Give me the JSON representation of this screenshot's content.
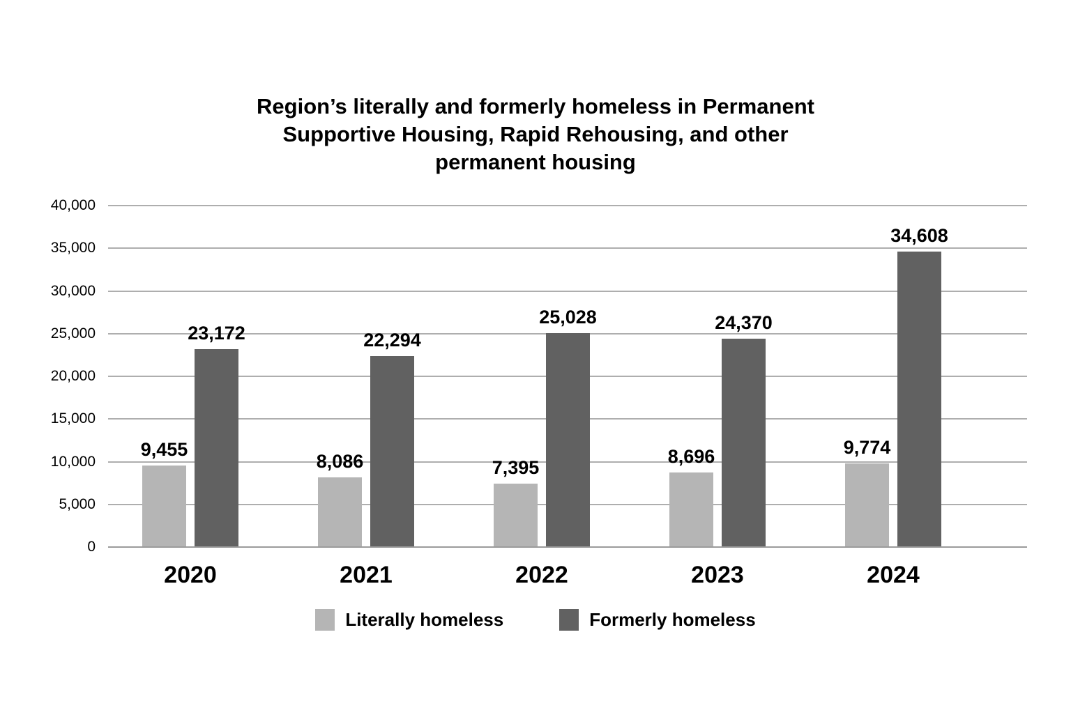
{
  "title": {
    "line1": "Region’s literally and formerly homeless in Permanent",
    "line2": "Supportive Housing, Rapid Rehousing, and other",
    "line3": "permanent housing"
  },
  "chart_data": {
    "type": "bar",
    "title": "Region’s literally and formerly homeless in Permanent Supportive Housing, Rapid Rehousing, and other permanent housing",
    "categories": [
      "2020",
      "2021",
      "2022",
      "2023",
      "2024"
    ],
    "series": [
      {
        "name": "Literally homeless",
        "color": "#b5b5b5",
        "values": [
          9455,
          8086,
          7395,
          8696,
          9774
        ],
        "labels": [
          "9,455",
          "8,086",
          "7,395",
          "8,696",
          "9,774"
        ]
      },
      {
        "name": "Formerly homeless",
        "color": "#616161",
        "values": [
          23172,
          22294,
          25028,
          24370,
          34608
        ],
        "labels": [
          "23,172",
          "22,294",
          "25,028",
          "24,370",
          "34,608"
        ]
      }
    ],
    "xlabel": "",
    "ylabel": "",
    "y_axis": {
      "min": 0,
      "max": 40000,
      "step": 5000,
      "tick_labels": [
        "40,000",
        "35,000",
        "30,000",
        "25,000",
        "20,000",
        "15,000",
        "10,000",
        "5,000",
        "0"
      ]
    },
    "grid": true,
    "legend_position": "bottom",
    "colors": {
      "gridline": "#aeaeae",
      "baseline": "#9b9b9b",
      "text": "#000000",
      "background": "#ffffff"
    }
  }
}
